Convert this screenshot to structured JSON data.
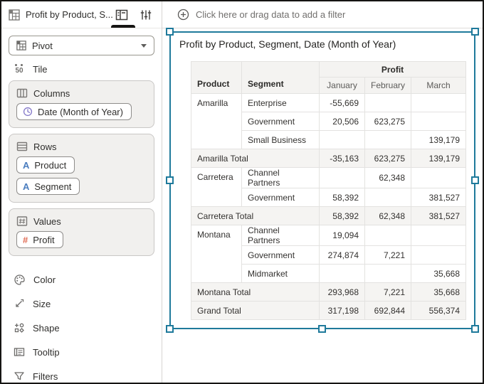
{
  "sidebar": {
    "title": "Profit by Product, S...",
    "viz_type_selector": {
      "selected": "Pivot"
    },
    "tile": {
      "label": "Tile"
    },
    "sections": {
      "columns": {
        "label": "Columns",
        "pills": [
          {
            "label": "Date (Month of Year)",
            "icon": "clock-icon"
          }
        ]
      },
      "rows": {
        "label": "Rows",
        "pills": [
          {
            "label": "Product",
            "icon": "text-attribute-icon"
          },
          {
            "label": "Segment",
            "icon": "text-attribute-icon"
          }
        ]
      },
      "values": {
        "label": "Values",
        "pills": [
          {
            "label": "Profit",
            "icon": "number-icon"
          }
        ]
      }
    },
    "menu_items": [
      {
        "label": "Color",
        "icon": "color-icon"
      },
      {
        "label": "Size",
        "icon": "size-icon"
      },
      {
        "label": "Shape",
        "icon": "shape-icon"
      },
      {
        "label": "Tooltip",
        "icon": "tooltip-icon"
      },
      {
        "label": "Filters",
        "icon": "filters-icon"
      }
    ]
  },
  "filter_bar": {
    "label": "Click here or drag data to add a filter"
  },
  "pivot": {
    "title": "Profit by Product, Segment, Date (Month of Year)",
    "row_headers": [
      "Product",
      "Segment"
    ],
    "measure_header": "Profit",
    "column_headers": [
      "January",
      "February",
      "March"
    ],
    "rows": [
      {
        "type": "data",
        "product": "Amarilla",
        "rowspan": 3,
        "segment": "Enterprise",
        "values": [
          "-55,669",
          "",
          ""
        ]
      },
      {
        "type": "data",
        "segment": "Government",
        "values": [
          "20,506",
          "623,275",
          ""
        ]
      },
      {
        "type": "data",
        "segment": "Small Business",
        "values": [
          "",
          "",
          "139,179"
        ]
      },
      {
        "type": "total",
        "label": "Amarilla Total",
        "values": [
          "-35,163",
          "623,275",
          "139,179"
        ]
      },
      {
        "type": "data",
        "product": "Carretera",
        "rowspan": 2,
        "segment": "Channel Partners",
        "values": [
          "",
          "62,348",
          ""
        ]
      },
      {
        "type": "data",
        "segment": "Government",
        "values": [
          "58,392",
          "",
          "381,527"
        ]
      },
      {
        "type": "total",
        "label": "Carretera Total",
        "values": [
          "58,392",
          "62,348",
          "381,527"
        ]
      },
      {
        "type": "data",
        "product": "Montana",
        "rowspan": 3,
        "segment": "Channel Partners",
        "values": [
          "19,094",
          "",
          ""
        ]
      },
      {
        "type": "data",
        "segment": "Government",
        "values": [
          "274,874",
          "7,221",
          ""
        ]
      },
      {
        "type": "data",
        "segment": "Midmarket",
        "values": [
          "",
          "",
          "35,668"
        ]
      },
      {
        "type": "total",
        "label": "Montana Total",
        "values": [
          "293,968",
          "7,221",
          "35,668"
        ]
      },
      {
        "type": "grand_total",
        "label": "Grand Total",
        "values": [
          "317,198",
          "692,844",
          "556,374"
        ]
      }
    ]
  },
  "colors": {
    "selection_teal": "#1f7a9b",
    "attribute_blue": "#4a7dbf",
    "measure_coral": "#e06a52",
    "date_purple": "#867aca",
    "header_bg": "#f4f3f1",
    "total_row_bg": "#f5f4f2"
  }
}
